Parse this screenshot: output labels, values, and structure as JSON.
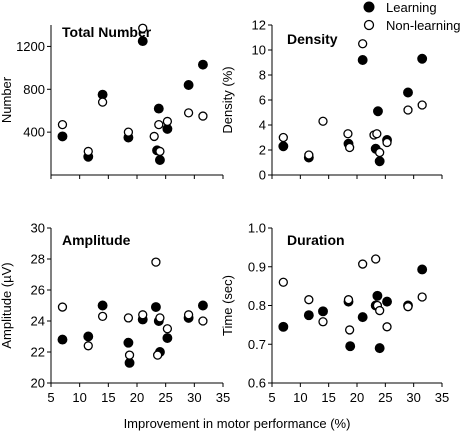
{
  "legend": {
    "learning": "Learning",
    "non_learning": "Non-learning"
  },
  "xlabel": "Improvement in motor performance (%)",
  "colors": {
    "learning": "#000000",
    "non_learning": "#ffffff",
    "stroke": "#000000"
  },
  "chart_data": [
    {
      "type": "scatter",
      "title": "Total Number",
      "xlabel": "",
      "ylabel": "Number",
      "xlim": [
        5,
        35
      ],
      "ylim": [
        0,
        1400
      ],
      "yticks": [
        "400",
        "800",
        "1200"
      ],
      "ytick_values": [
        400,
        800,
        1200
      ],
      "xticks": [],
      "grid": false,
      "series": [
        {
          "name": "Learning",
          "x": [
            7,
            11.5,
            14,
            18.5,
            21,
            23.5,
            23.8,
            24,
            25.3,
            29,
            31.5
          ],
          "y": [
            360,
            170,
            750,
            350,
            1250,
            230,
            620,
            140,
            430,
            840,
            1030
          ]
        },
        {
          "name": "Non-learning",
          "x": [
            7,
            11.5,
            14,
            18.5,
            21,
            23,
            23.8,
            24,
            25.3,
            29,
            31.5
          ],
          "y": [
            470,
            220,
            680,
            400,
            1370,
            360,
            470,
            220,
            500,
            580,
            550
          ]
        }
      ]
    },
    {
      "type": "scatter",
      "title": "Density",
      "xlabel": "",
      "ylabel": "Density (%)",
      "xlim": [
        5,
        35
      ],
      "ylim": [
        0,
        12
      ],
      "yticks": [
        "0",
        "2",
        "4",
        "6",
        "8",
        "10",
        "12"
      ],
      "ytick_values": [
        0,
        2,
        4,
        6,
        8,
        10,
        12
      ],
      "xticks": [],
      "grid": false,
      "series": [
        {
          "name": "Learning",
          "x": [
            7,
            11.5,
            18.5,
            21,
            23.3,
            23.7,
            24,
            25.3,
            29,
            31.5
          ],
          "y": [
            2.3,
            1.4,
            2.5,
            9.2,
            2.1,
            5.1,
            1.1,
            2.8,
            6.6,
            9.3
          ]
        },
        {
          "name": "Non-learning",
          "x": [
            7,
            11.5,
            14,
            18.4,
            18.7,
            21,
            23,
            23.5,
            24,
            25.3,
            29,
            31.5
          ],
          "y": [
            3.0,
            1.6,
            4.3,
            3.3,
            2.2,
            10.5,
            3.2,
            3.3,
            1.8,
            2.6,
            5.2,
            5.6
          ]
        }
      ]
    },
    {
      "type": "scatter",
      "title": "Amplitude",
      "xlabel": "",
      "ylabel": "Amplitude (µV)",
      "xlim": [
        5,
        35
      ],
      "ylim": [
        20,
        30
      ],
      "yticks": [
        "20",
        "22",
        "24",
        "26",
        "28",
        "30"
      ],
      "ytick_values": [
        20,
        22,
        24,
        26,
        28,
        30
      ],
      "xticks": [
        "5",
        "10",
        "15",
        "20",
        "25",
        "30",
        "35"
      ],
      "xtick_values": [
        5,
        10,
        15,
        20,
        25,
        30,
        35
      ],
      "grid": false,
      "series": [
        {
          "name": "Learning",
          "x": [
            7,
            11.5,
            14,
            18.5,
            18.7,
            21,
            23.3,
            23.8,
            24,
            25.3,
            29,
            31.5
          ],
          "y": [
            22.8,
            23.0,
            25.0,
            22.6,
            21.3,
            24.1,
            24.9,
            24.0,
            22.0,
            22.9,
            24.2,
            25.0
          ]
        },
        {
          "name": "Non-learning",
          "x": [
            7,
            11.5,
            14,
            18.5,
            18.7,
            21,
            23.3,
            23.6,
            24,
            25.3,
            29,
            31.5
          ],
          "y": [
            24.9,
            22.4,
            24.3,
            24.2,
            21.8,
            24.4,
            27.8,
            21.8,
            24.2,
            23.5,
            24.4,
            24.0
          ]
        }
      ]
    },
    {
      "type": "scatter",
      "title": "Duration",
      "xlabel": "",
      "ylabel": "Time (sec)",
      "xlim": [
        5,
        35
      ],
      "ylim": [
        0.6,
        1.0
      ],
      "yticks": [
        "0.6",
        "0.7",
        "0.8",
        "0.9",
        "1.0"
      ],
      "ytick_values": [
        0.6,
        0.7,
        0.8,
        0.9,
        1.0
      ],
      "xticks": [
        "5",
        "10",
        "15",
        "20",
        "25",
        "30",
        "35"
      ],
      "xtick_values": [
        5,
        10,
        15,
        20,
        25,
        30,
        35
      ],
      "grid": false,
      "series": [
        {
          "name": "Learning",
          "x": [
            7,
            11.5,
            14,
            18.5,
            18.8,
            21,
            23.3,
            23.6,
            24,
            25.3,
            29,
            31.5
          ],
          "y": [
            0.745,
            0.775,
            0.785,
            0.81,
            0.695,
            0.77,
            0.8,
            0.825,
            0.69,
            0.81,
            0.8,
            0.893
          ]
        },
        {
          "name": "Non-learning",
          "x": [
            7,
            11.5,
            14,
            18.5,
            18.7,
            21,
            23.3,
            23.6,
            24,
            25.3,
            29,
            31.5
          ],
          "y": [
            0.86,
            0.815,
            0.758,
            0.815,
            0.737,
            0.907,
            0.92,
            0.8,
            0.787,
            0.745,
            0.797,
            0.822
          ]
        }
      ]
    }
  ]
}
